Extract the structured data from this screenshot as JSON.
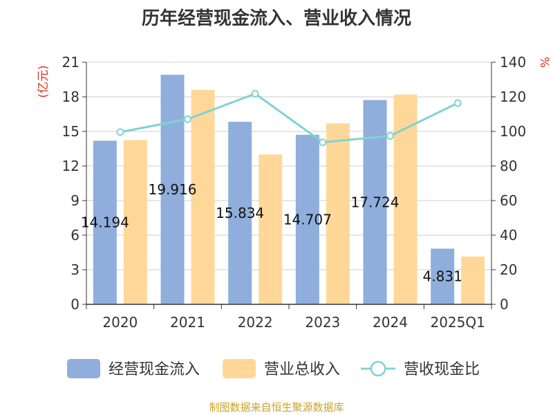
{
  "chart_data": {
    "type": "bar",
    "title": "历年经营现金流入、营业收入情况",
    "categories": [
      "2020",
      "2021",
      "2022",
      "2023",
      "2024",
      "2025Q1"
    ],
    "series": [
      {
        "name": "经营现金流入",
        "type": "bar",
        "axis": "left",
        "color": "#8faedb",
        "values": [
          14.194,
          19.916,
          15.834,
          14.707,
          17.724,
          4.831
        ],
        "labels": [
          "14.194",
          "19.916",
          "15.834",
          "14.707",
          "17.724",
          "4.831"
        ]
      },
      {
        "name": "营业总收入",
        "type": "bar",
        "axis": "left",
        "color": "#ffd899",
        "values": [
          14.25,
          18.6,
          13.0,
          15.7,
          18.2,
          4.15
        ]
      },
      {
        "name": "营收现金比",
        "type": "line",
        "axis": "right",
        "color": "#7fd3d3",
        "values": [
          99.6,
          107.1,
          121.8,
          93.7,
          97.4,
          116.4
        ]
      }
    ],
    "y_left": {
      "unit": "(亿元)",
      "min": 0,
      "max": 21,
      "ticks": [
        "0",
        "3",
        "6",
        "9",
        "12",
        "15",
        "18",
        "21"
      ]
    },
    "y_right": {
      "unit": "%",
      "min": 0,
      "max": 140,
      "ticks": [
        "0",
        "20",
        "40",
        "60",
        "80",
        "100",
        "120",
        "140"
      ]
    },
    "grid": true,
    "legend_position": "bottom"
  },
  "source_note": "制图数据来自恒生聚源数据库"
}
